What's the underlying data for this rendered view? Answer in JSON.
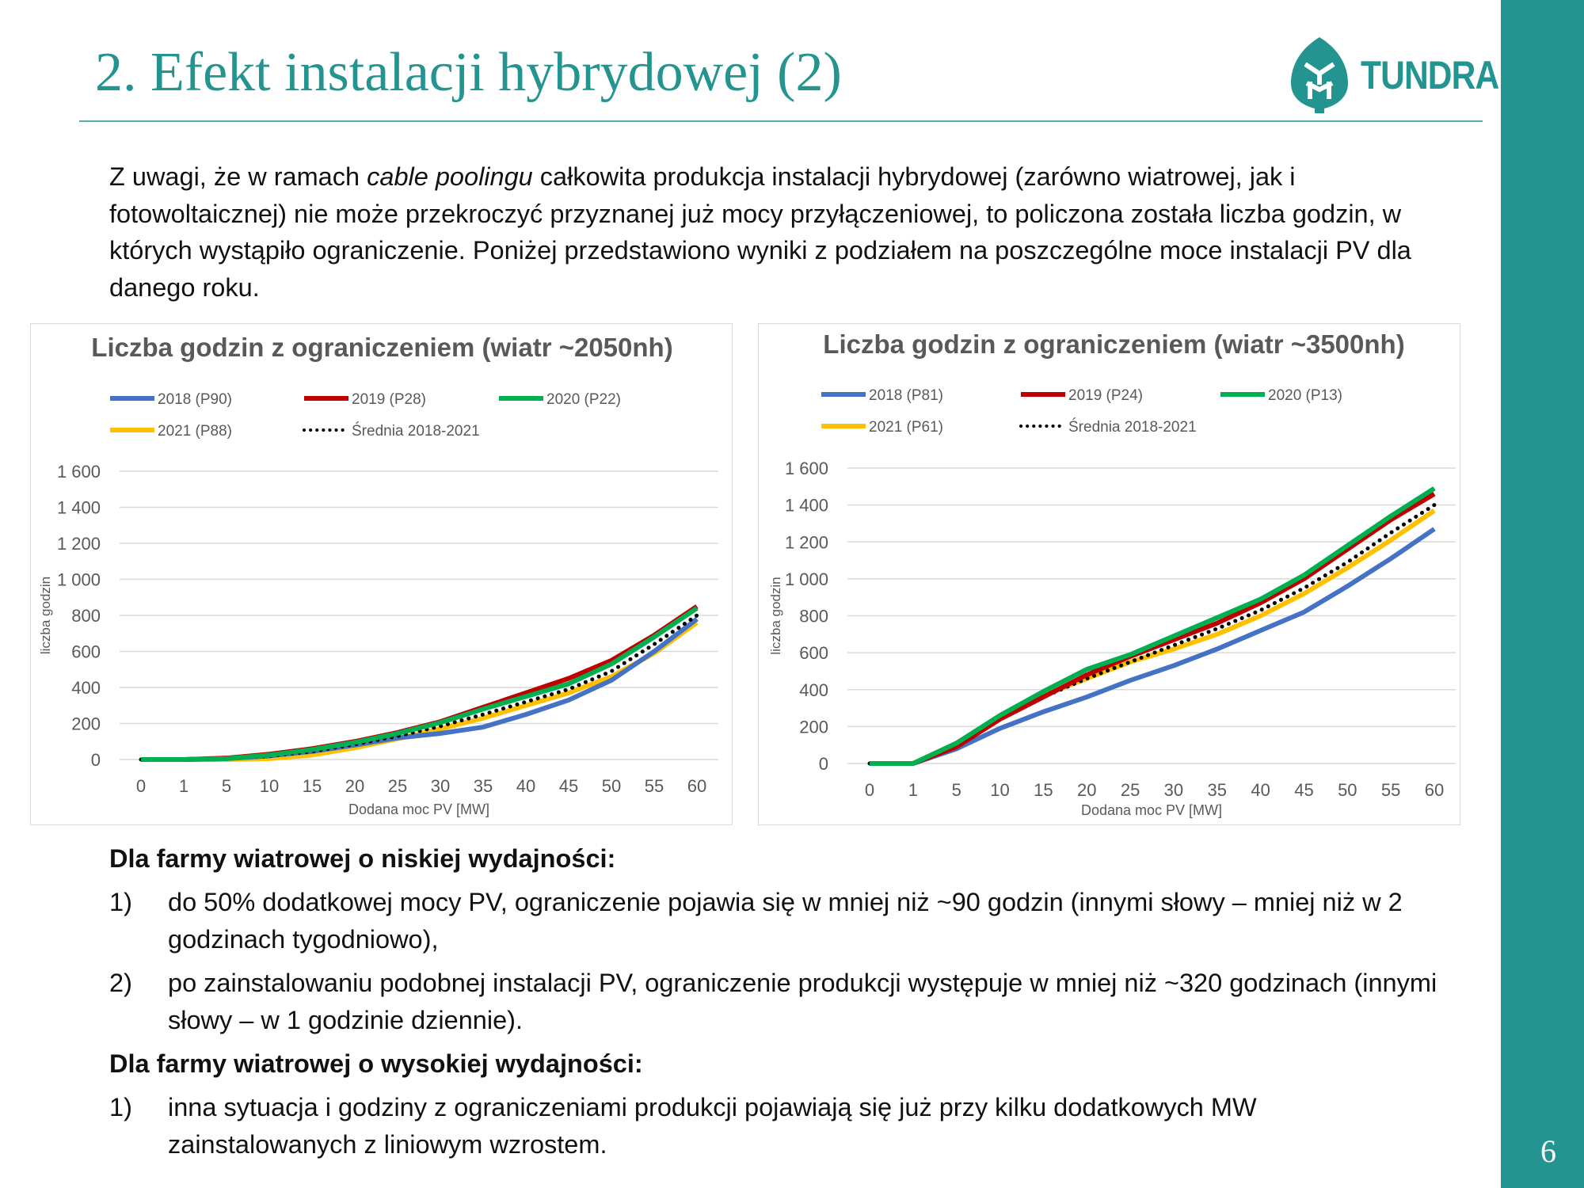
{
  "header": {
    "title": "2. Efekt instalacji hybrydowej (2)",
    "logo_text": "TUNDRA"
  },
  "intro": {
    "before_italic": " Z uwagi, że w ramach ",
    "italic": "cable poolingu",
    "after_italic": " całkowita produkcja instalacji hybrydowej (zarówno wiatrowej, jak i fotowoltaicznej) nie może przekroczyć przyznanej już mocy przyłączeniowej, to policzona została liczba godzin, w których wystąpiło ograniczenie. Poniżej przedstawiono wyniki z podziałem na poszczególne moce instalacji PV dla danego roku."
  },
  "chart_data": [
    {
      "type": "line",
      "title": "Liczba godzin z ograniczeniem (wiatr ~2050nh)",
      "xlabel": "Dodana moc PV [MW]",
      "ylabel": "liczba godzin",
      "ylim": [
        0,
        1600
      ],
      "yticks": [
        "0",
        "200",
        "400",
        "600",
        "800",
        "1 000",
        "1 200",
        "1 400",
        "1 600"
      ],
      "grid": true,
      "legend_position": "top",
      "categories": [
        "0",
        "1",
        "5",
        "10",
        "15",
        "20",
        "25",
        "30",
        "35",
        "40",
        "45",
        "50",
        "55",
        "60"
      ],
      "series": [
        {
          "name": "2018 (P90)",
          "color": "#4472c4",
          "style": "solid",
          "values": [
            0,
            0,
            5,
            20,
            45,
            80,
            120,
            145,
            180,
            250,
            330,
            440,
            600,
            780
          ]
        },
        {
          "name": "2019 (P28)",
          "color": "#c00000",
          "style": "solid",
          "values": [
            0,
            0,
            8,
            30,
            60,
            100,
            150,
            210,
            290,
            370,
            450,
            550,
            690,
            850
          ]
        },
        {
          "name": "2020 (P22)",
          "color": "#00b050",
          "style": "solid",
          "values": [
            0,
            0,
            5,
            25,
            55,
            95,
            145,
            205,
            280,
            350,
            420,
            530,
            680,
            840
          ]
        },
        {
          "name": "2021 (P88)",
          "color": "#ffc000",
          "style": "solid",
          "values": [
            0,
            0,
            0,
            5,
            25,
            65,
            115,
            170,
            230,
            300,
            370,
            460,
            590,
            760
          ]
        },
        {
          "name": "Średnia 2018-2021",
          "color": "#000000",
          "style": "dotted",
          "values": [
            0,
            0,
            5,
            20,
            45,
            85,
            130,
            185,
            250,
            320,
            390,
            490,
            640,
            800
          ]
        }
      ]
    },
    {
      "type": "line",
      "title": "Liczba godzin z ograniczeniem (wiatr ~3500nh)",
      "xlabel": "Dodana moc PV [MW]",
      "ylabel": "liczba godzin",
      "ylim": [
        0,
        1600
      ],
      "yticks": [
        "0",
        "200",
        "400",
        "600",
        "800",
        "1 000",
        "1 200",
        "1 400",
        "1 600"
      ],
      "grid": true,
      "legend_position": "top",
      "categories": [
        "0",
        "1",
        "5",
        "10",
        "15",
        "20",
        "25",
        "30",
        "35",
        "40",
        "45",
        "50",
        "55",
        "60"
      ],
      "series": [
        {
          "name": "2018 (P81)",
          "color": "#4472c4",
          "style": "solid",
          "values": [
            0,
            0,
            80,
            190,
            280,
            360,
            450,
            530,
            620,
            720,
            820,
            960,
            1110,
            1270
          ]
        },
        {
          "name": "2019 (P24)",
          "color": "#c00000",
          "style": "solid",
          "values": [
            0,
            0,
            90,
            240,
            360,
            480,
            580,
            670,
            760,
            870,
            1000,
            1160,
            1320,
            1460
          ]
        },
        {
          "name": "2020 (P13)",
          "color": "#00b050",
          "style": "solid",
          "values": [
            0,
            0,
            110,
            260,
            390,
            510,
            590,
            690,
            790,
            890,
            1020,
            1180,
            1340,
            1490
          ]
        },
        {
          "name": "2021 (P61)",
          "color": "#ffc000",
          "style": "solid",
          "values": [
            0,
            0,
            110,
            260,
            370,
            460,
            550,
            620,
            700,
            800,
            920,
            1060,
            1210,
            1370
          ]
        },
        {
          "name": "Średnia 2018-2021",
          "color": "#000000",
          "style": "dotted",
          "values": [
            0,
            0,
            100,
            240,
            360,
            460,
            550,
            640,
            730,
            830,
            950,
            1090,
            1250,
            1400
          ]
        }
      ]
    }
  ],
  "low": {
    "heading": "Dla farmy wiatrowej o niskiej wydajności:",
    "items": [
      {
        "num": "1)",
        "text": "do 50% dodatkowej mocy PV, ograniczenie pojawia się w mniej niż ~90 godzin (innymi słowy – mniej niż w 2 godzinach tygodniowo),"
      },
      {
        "num": "2)",
        "text": "po zainstalowaniu podobnej instalacji PV, ograniczenie produkcji występuje w mniej niż ~320 godzinach (innymi słowy – w 1 godzinie dziennie)."
      }
    ]
  },
  "high": {
    "heading": "Dla farmy wiatrowej o wysokiej wydajności:",
    "items": [
      {
        "num": "1)",
        "text": "inna sytuacja i godziny z ograniczeniami produkcji pojawiają się już przy kilku dodatkowych MW zainstalowanych z liniowym wzrostem."
      }
    ]
  },
  "footer": {
    "page_number": "6"
  },
  "colors": {
    "accent": "#239490"
  }
}
